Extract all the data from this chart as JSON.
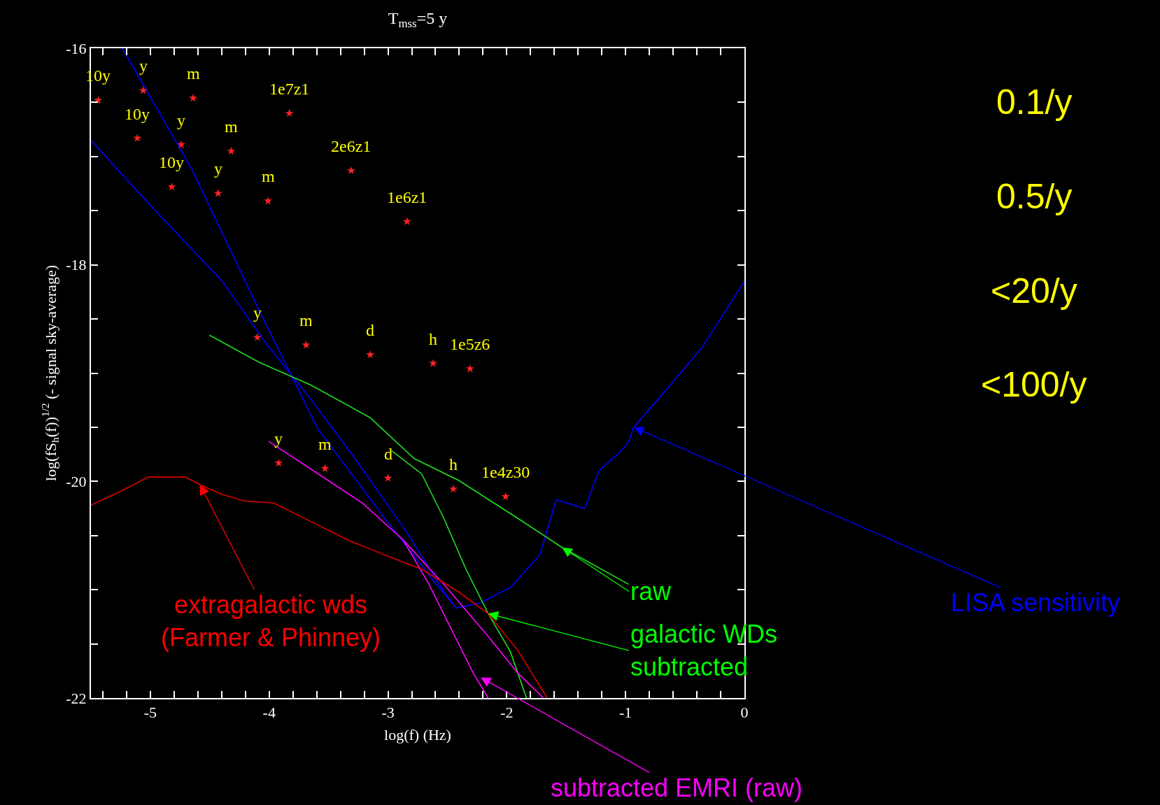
{
  "chart_data": {
    "type": "line",
    "title": "T$_{mss}$=5 y",
    "xlabel": "log(f) (Hz)",
    "ylabel": "log(fS$_{h}$(f))$^{1/2}$ (- signal sky-average)",
    "xlim": [
      -5.5,
      0
    ],
    "ylim": [
      -22,
      -16
    ],
    "xticks": [
      {
        "value": -5.4,
        "label": null
      },
      {
        "value": -5.2,
        "label": null
      },
      -5,
      {
        "value": -4.8,
        "label": null
      },
      {
        "value": -4.6,
        "label": null
      },
      {
        "value": -4.4,
        "label": null
      },
      {
        "value": -4.2,
        "label": null
      },
      -4,
      {
        "value": -3.8,
        "label": null
      },
      {
        "value": -3.6,
        "label": null
      },
      {
        "value": -3.4,
        "label": null
      },
      {
        "value": -3.2,
        "label": null
      },
      -3,
      {
        "value": -2.8,
        "label": null
      },
      {
        "value": -2.6,
        "label": null
      },
      {
        "value": -2.4,
        "label": null
      },
      {
        "value": -2.2,
        "label": null
      },
      -2,
      {
        "value": -1.8,
        "label": null
      },
      {
        "value": -1.6,
        "label": null
      },
      {
        "value": -1.4,
        "label": null
      },
      {
        "value": -1.2,
        "label": null
      },
      -1,
      {
        "value": -0.8,
        "label": null
      },
      {
        "value": -0.6,
        "label": null
      },
      {
        "value": -0.4,
        "label": null
      },
      {
        "value": -0.2,
        "label": null
      },
      0
    ],
    "yticks": [
      -16,
      {
        "value": -16.5,
        "label": null
      },
      {
        "value": -17,
        "label": null
      },
      {
        "value": -17.5,
        "label": null
      },
      -18,
      {
        "value": -18.5,
        "label": null
      },
      {
        "value": -19,
        "label": null
      },
      {
        "value": -19.5,
        "label": null
      },
      -20,
      {
        "value": -20.5,
        "label": null
      },
      {
        "value": -21,
        "label": null
      },
      {
        "value": -21.5,
        "label": null
      },
      -22
    ],
    "grid": false,
    "series": [
      {
        "type": "line",
        "color": "#0000ff",
        "x": [
          -5.236,
          -4.645,
          -4.085,
          -3.588,
          -3.028,
          -2.593,
          -2.425
        ],
        "values": [
          -16.0,
          -17.13,
          -18.42,
          -19.52,
          -20.34,
          -20.95,
          -21.17
        ]
      },
      {
        "type": "line",
        "color": "#0000ff",
        "x": [
          -5.5,
          -5.018,
          -4.396,
          -4.023,
          -3.65,
          -3.277,
          -2.841,
          -2.53,
          -2.425,
          -2.22,
          -1.971,
          -1.722,
          -1.585,
          -1.343,
          -1.224,
          -1.069,
          -0.982,
          -0.932,
          -0.64,
          -0.354,
          0
        ],
        "values": [
          -16.85,
          -17.43,
          -18.15,
          -18.73,
          -19.24,
          -19.79,
          -20.47,
          -21.02,
          -21.17,
          -21.12,
          -20.98,
          -20.68,
          -20.17,
          -20.25,
          -19.9,
          -19.75,
          -19.65,
          -19.5,
          -19.13,
          -18.76,
          -18.15
        ]
      },
      {
        "type": "line",
        "color": "#22dd22",
        "x": [
          -4.502,
          -4.085,
          -3.65,
          -3.152,
          -2.779,
          -2.406,
          -1.908,
          -1.535,
          -0.975
        ],
        "values": [
          -18.65,
          -18.9,
          -19.11,
          -19.41,
          -19.79,
          -19.99,
          -20.34,
          -20.61,
          -20.95
        ]
      },
      {
        "type": "line",
        "color": "#22dd22",
        "x": [
          -2.966,
          -2.717,
          -2.53,
          -2.344,
          -2.157,
          -1.971,
          -1.834
        ],
        "values": [
          -19.72,
          -19.93,
          -20.34,
          -20.81,
          -21.22,
          -21.57,
          -22.0
        ]
      },
      {
        "type": "line",
        "color": "#ff00ff",
        "x": [
          -4.004,
          -3.588,
          -3.215,
          -2.873,
          -2.53,
          -2.157,
          -1.908,
          -1.691
        ],
        "values": [
          -19.63,
          -19.93,
          -20.2,
          -20.54,
          -20.95,
          -21.43,
          -21.77,
          -22.0
        ]
      },
      {
        "type": "line",
        "color": "#ff00ff",
        "x": [
          -2.873,
          -2.655,
          -2.469,
          -2.282,
          -2.157
        ],
        "values": [
          -20.54,
          -20.95,
          -21.36,
          -21.77,
          -22.0
        ]
      },
      {
        "type": "line",
        "color": "#dd0000",
        "x": [
          -5.5,
          -5.267,
          -5.018,
          -4.707,
          -4.583,
          -4.396,
          -4.21,
          -3.961,
          -3.65,
          -3.339,
          -3.028,
          -2.717,
          -2.406,
          -2.157,
          -1.908,
          -1.66
        ],
        "values": [
          -20.22,
          -20.1,
          -19.96,
          -19.96,
          -20.03,
          -20.12,
          -20.18,
          -20.2,
          -20.37,
          -20.54,
          -20.68,
          -20.81,
          -21.02,
          -21.22,
          -21.56,
          -22.0
        ]
      },
      {
        "type": "scatter",
        "marker": "star",
        "color": "#ff2222",
        "x": [
          -5.44,
          -5.06,
          -4.64,
          -3.83,
          -5.11,
          -4.74,
          -4.32,
          -3.31,
          -4.82,
          -4.43,
          -4.01,
          -2.84,
          -4.1,
          -3.69,
          -3.15,
          -2.62,
          -2.31,
          -3.92,
          -3.53,
          -3.0,
          -2.45,
          -2.01
        ],
        "values": [
          -16.48,
          -16.39,
          -16.46,
          -16.6,
          -16.83,
          -16.89,
          -16.95,
          -17.13,
          -17.28,
          -17.34,
          -17.41,
          -17.6,
          -18.67,
          -18.74,
          -18.83,
          -18.91,
          -18.96,
          -19.83,
          -19.88,
          -19.97,
          -20.07,
          -20.14
        ]
      }
    ],
    "annotations": [
      "0.1/y",
      "0.5/y",
      "<20/y",
      "<100/y",
      {
        "text": "extragalactic wds\n(Farmer & Phinney)",
        "x": -4.583,
        "y": -20.03
      },
      {
        "text": "raw",
        "x": -1.535,
        "y": -20.61
      },
      {
        "text": "galactic WDs\nsubtracted",
        "x": -2.157,
        "y": -21.22
      },
      {
        "text": "subtracted EMRI (raw)",
        "x": -2.22,
        "y": -21.81
      },
      {
        "text": "LISA sensitivity",
        "x": -0.932,
        "y": -19.5
      },
      {
        "text": "10y",
        "x": -5.44,
        "y": -16.48
      },
      {
        "text": "y",
        "x": -5.06,
        "y": -16.39
      },
      {
        "text": "m",
        "x": -4.64,
        "y": -16.46
      },
      {
        "text": "1e7z1",
        "x": -3.83,
        "y": -16.6
      },
      {
        "text": "10y",
        "x": -5.11,
        "y": -16.83
      },
      {
        "text": "y",
        "x": -4.74,
        "y": -16.89
      },
      {
        "text": "m",
        "x": -4.32,
        "y": -16.95
      },
      {
        "text": "2e6z1",
        "x": -3.31,
        "y": -17.13
      },
      {
        "text": "10y",
        "x": -4.82,
        "y": -17.28
      },
      {
        "text": "y",
        "x": -4.43,
        "y": -17.34
      },
      {
        "text": "m",
        "x": -4.01,
        "y": -17.41
      },
      {
        "text": "1e6z1",
        "x": -2.84,
        "y": -17.6
      },
      {
        "text": "y",
        "x": -4.1,
        "y": -18.67
      },
      {
        "text": "m",
        "x": -3.69,
        "y": -18.74
      },
      {
        "text": "d",
        "x": -3.15,
        "y": -18.83
      },
      {
        "text": "h",
        "x": -2.62,
        "y": -18.91
      },
      {
        "text": "1e5z6",
        "x": -2.31,
        "y": -18.96
      },
      {
        "text": "y",
        "x": -3.92,
        "y": -19.83
      },
      {
        "text": "m",
        "x": -3.53,
        "y": -19.88
      },
      {
        "text": "d",
        "x": -3.0,
        "y": -19.97
      },
      {
        "text": "h",
        "x": -2.45,
        "y": -20.07
      },
      {
        "text": "1e4z30",
        "x": -2.01,
        "y": -20.14
      }
    ]
  }
}
